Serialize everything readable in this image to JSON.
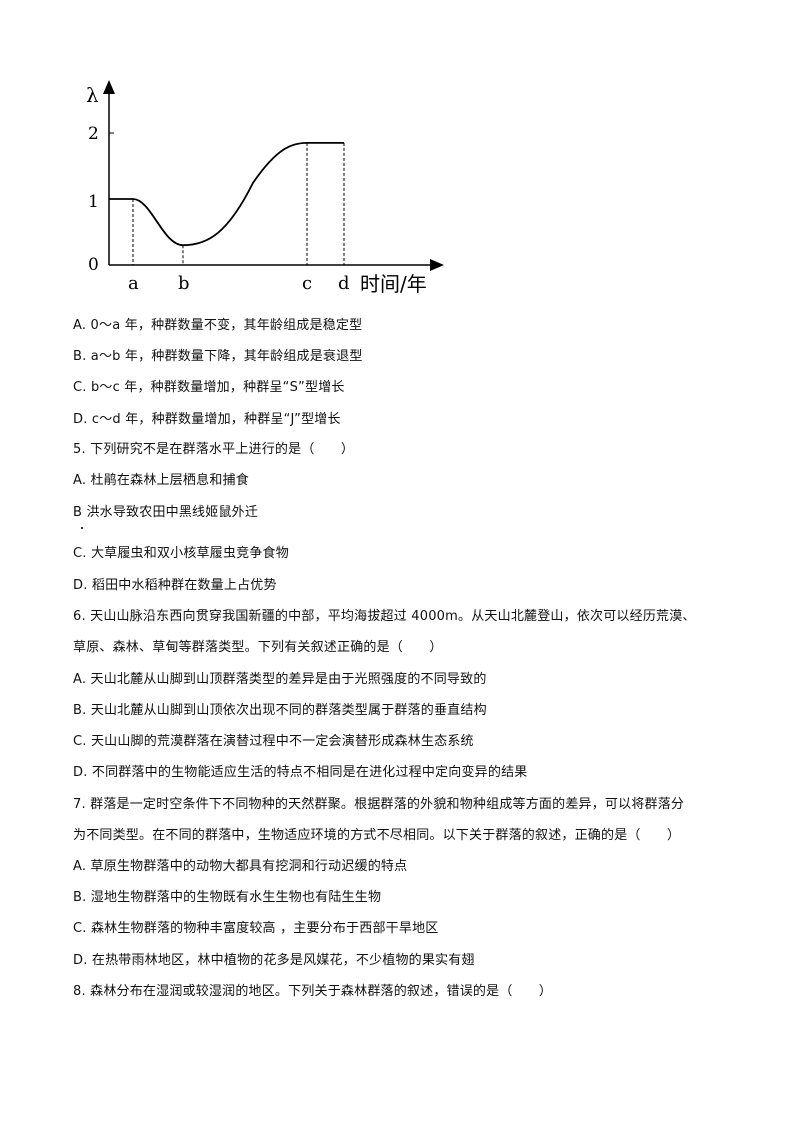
{
  "figure": {
    "y_axis_label": "λ",
    "x_axis_label": "时间/年",
    "y_ticks": [
      "0",
      "1",
      "2"
    ],
    "x_ticks": [
      "a",
      "b",
      "c",
      "d"
    ],
    "chart_data": {
      "type": "line",
      "ylabel": "λ",
      "xlabel": "时间/年",
      "y_ticks": [
        0,
        1,
        2
      ],
      "x_ticks": [
        "a",
        "b",
        "c",
        "d"
      ],
      "ylim": [
        0,
        2.8
      ],
      "points": [
        {
          "x": "0",
          "y": 1.0
        },
        {
          "x": "a",
          "y": 1.0
        },
        {
          "x": "b",
          "y": 0.3
        },
        {
          "x": "c",
          "y": 1.85
        },
        {
          "x": "d",
          "y": 1.85
        }
      ],
      "dashed_guides_at": [
        "a",
        "b",
        "c",
        "d"
      ],
      "grid": false
    }
  },
  "lines": [
    "A. 0～a 年，种群数量不变，其年龄组成是稳定型",
    "B. a～b 年，种群数量下降，其年龄组成是衰退型",
    "C. b～c 年，种群数量增加，种群呈“S”型增长",
    "D. c～d 年，种群数量增加，种群呈“J”型增长",
    "5. 下列研究不是在群落水平上进行的是（　　）",
    "A. 杜鹃在森林上层栖息和捕食",
    "B  洪水导致农田中黑线姬鼠外迁",
    "C. 大草履虫和双小核草履虫竞争食物",
    "D. 稻田中水稻种群在数量上占优势",
    "6. 天山山脉沿东西向贯穿我国新疆的中部，平均海拔超过 4000m。从天山北麓登山，依次可以经历荒漠、",
    "草原、森林、草甸等群落类型。下列有关叙述正确的是（　　）",
    "A. 天山北麓从山脚到山顶群落类型的差异是由于光照强度的不同导致的",
    "B. 天山北麓从山脚到山顶依次出现不同的群落类型属于群落的垂直结构",
    "C. 天山山脚的荒漠群落在演替过程中不一定会演替形成森林生态系统",
    "D. 不同群落中的生物能适应生活的特点不相同是在进化过程中定向变异的结果",
    "7. 群落是一定时空条件下不同物种的天然群聚。根据群落的外貌和物种组成等方面的差异，可以将群落分",
    "为不同类型。在不同的群落中，生物适应环境的方式不尽相同。以下关于群落的叙述，正确的是（　　）",
    "A. 草原生物群落中的动物大都具有挖洞和行动迟缓的特点",
    "B. 湿地生物群落中的生物既有水生生物也有陆生生物",
    "C. 森林生物群落的物种丰富度较高 ，主要分布于西部干旱地区",
    "D. 在热带雨林地区，林中植物的花多是风媒花，不少植物的果实有翅",
    "8. 森林分布在湿润或较湿润的地区。下列关于森林群落的叙述，错误的是（　　）"
  ]
}
